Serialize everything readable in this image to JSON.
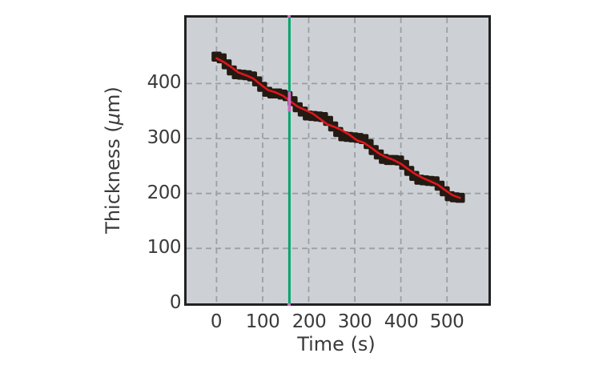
{
  "figure": {
    "background": "#ffffff",
    "plot_background": "#cdd1d5",
    "border_color": "#212121",
    "grid_color": "#9ba0a5",
    "text_color": "#3a3a3a"
  },
  "chart_data": {
    "type": "scatter",
    "title": "",
    "xlabel": "Time (s)",
    "ylabel": "Thickness (μm)",
    "ylabel_parts": {
      "prefix": "Thickness (",
      "mu": "μ",
      "suffix": "m)"
    },
    "xlim": [
      -65,
      590
    ],
    "ylim": [
      0,
      520
    ],
    "x_ticks": [
      0,
      100,
      200,
      300,
      400,
      500
    ],
    "y_ticks": [
      0,
      100,
      200,
      300,
      400
    ],
    "grid": "dashed",
    "legend": "none",
    "series": [
      {
        "name": "measured-thickness-points",
        "type": "scatter",
        "marker": "square",
        "color": "#241a14",
        "points": [
          [
            0,
            449
          ],
          [
            11,
            446
          ],
          [
            22,
            435
          ],
          [
            33,
            424
          ],
          [
            44,
            417
          ],
          [
            55,
            416
          ],
          [
            66,
            415
          ],
          [
            77,
            413
          ],
          [
            88,
            404
          ],
          [
            99,
            394
          ],
          [
            110,
            385
          ],
          [
            121,
            382
          ],
          [
            132,
            382
          ],
          [
            143,
            380
          ],
          [
            154,
            377
          ],
          [
            165,
            368
          ],
          [
            176,
            357
          ],
          [
            187,
            349
          ],
          [
            198,
            342
          ],
          [
            209,
            341
          ],
          [
            220,
            340
          ],
          [
            231,
            339
          ],
          [
            242,
            332
          ],
          [
            253,
            322
          ],
          [
            264,
            312
          ],
          [
            275,
            304
          ],
          [
            286,
            303
          ],
          [
            297,
            302
          ],
          [
            308,
            301
          ],
          [
            319,
            299
          ],
          [
            330,
            290
          ],
          [
            341,
            279
          ],
          [
            352,
            271
          ],
          [
            363,
            263
          ],
          [
            374,
            261
          ],
          [
            385,
            261
          ],
          [
            396,
            260
          ],
          [
            407,
            252
          ],
          [
            418,
            241
          ],
          [
            429,
            232
          ],
          [
            440,
            225
          ],
          [
            451,
            224
          ],
          [
            462,
            223
          ],
          [
            473,
            222
          ],
          [
            484,
            214
          ],
          [
            495,
            204
          ],
          [
            506,
            195
          ],
          [
            517,
            193
          ],
          [
            528,
            192
          ]
        ]
      },
      {
        "name": "mean-thickness-line",
        "type": "line",
        "color": "#e0161b",
        "points": [
          [
            0,
            446
          ],
          [
            16,
            439
          ],
          [
            32,
            430
          ],
          [
            48,
            420
          ],
          [
            64,
            415
          ],
          [
            80,
            409
          ],
          [
            96,
            398
          ],
          [
            112,
            388
          ],
          [
            128,
            384
          ],
          [
            144,
            378
          ],
          [
            160,
            368
          ],
          [
            176,
            358
          ],
          [
            192,
            352
          ],
          [
            208,
            346
          ],
          [
            224,
            336
          ],
          [
            240,
            326
          ],
          [
            256,
            321
          ],
          [
            272,
            315
          ],
          [
            288,
            307
          ],
          [
            304,
            297
          ],
          [
            320,
            292
          ],
          [
            336,
            283
          ],
          [
            352,
            273
          ],
          [
            368,
            266
          ],
          [
            384,
            261
          ],
          [
            400,
            254
          ],
          [
            416,
            244
          ],
          [
            432,
            235
          ],
          [
            448,
            228
          ],
          [
            464,
            222
          ],
          [
            480,
            216
          ],
          [
            496,
            206
          ],
          [
            512,
            197
          ],
          [
            528,
            192
          ]
        ]
      },
      {
        "name": "cursor-line",
        "type": "vline",
        "x": 158,
        "color": "#00a46a",
        "highlight": {
          "color": "#cb6dc0",
          "y_from": 349,
          "y_to": 385
        }
      }
    ]
  }
}
